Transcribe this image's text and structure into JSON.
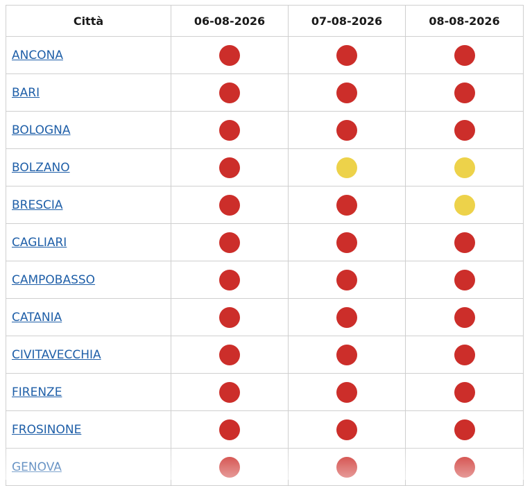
{
  "colors": {
    "red": "#cc2e2a",
    "yellow": "#edd24a"
  },
  "table": {
    "headers": [
      "Città",
      "06-08-2026",
      "07-08-2026",
      "08-08-2026"
    ],
    "rows": [
      {
        "city": "ANCONA",
        "levels": [
          "red",
          "red",
          "red"
        ]
      },
      {
        "city": "BARI",
        "levels": [
          "red",
          "red",
          "red"
        ]
      },
      {
        "city": "BOLOGNA",
        "levels": [
          "red",
          "red",
          "red"
        ]
      },
      {
        "city": "BOLZANO",
        "levels": [
          "red",
          "yellow",
          "yellow"
        ]
      },
      {
        "city": "BRESCIA",
        "levels": [
          "red",
          "red",
          "yellow"
        ]
      },
      {
        "city": "CAGLIARI",
        "levels": [
          "red",
          "red",
          "red"
        ]
      },
      {
        "city": "CAMPOBASSO",
        "levels": [
          "red",
          "red",
          "red"
        ]
      },
      {
        "city": "CATANIA",
        "levels": [
          "red",
          "red",
          "red"
        ]
      },
      {
        "city": "CIVITAVECCHIA",
        "levels": [
          "red",
          "red",
          "red"
        ]
      },
      {
        "city": "FIRENZE",
        "levels": [
          "red",
          "red",
          "red"
        ]
      },
      {
        "city": "FROSINONE",
        "levels": [
          "red",
          "red",
          "red"
        ]
      },
      {
        "city": "GENOVA",
        "levels": [
          "red",
          "red",
          "red"
        ]
      }
    ]
  }
}
